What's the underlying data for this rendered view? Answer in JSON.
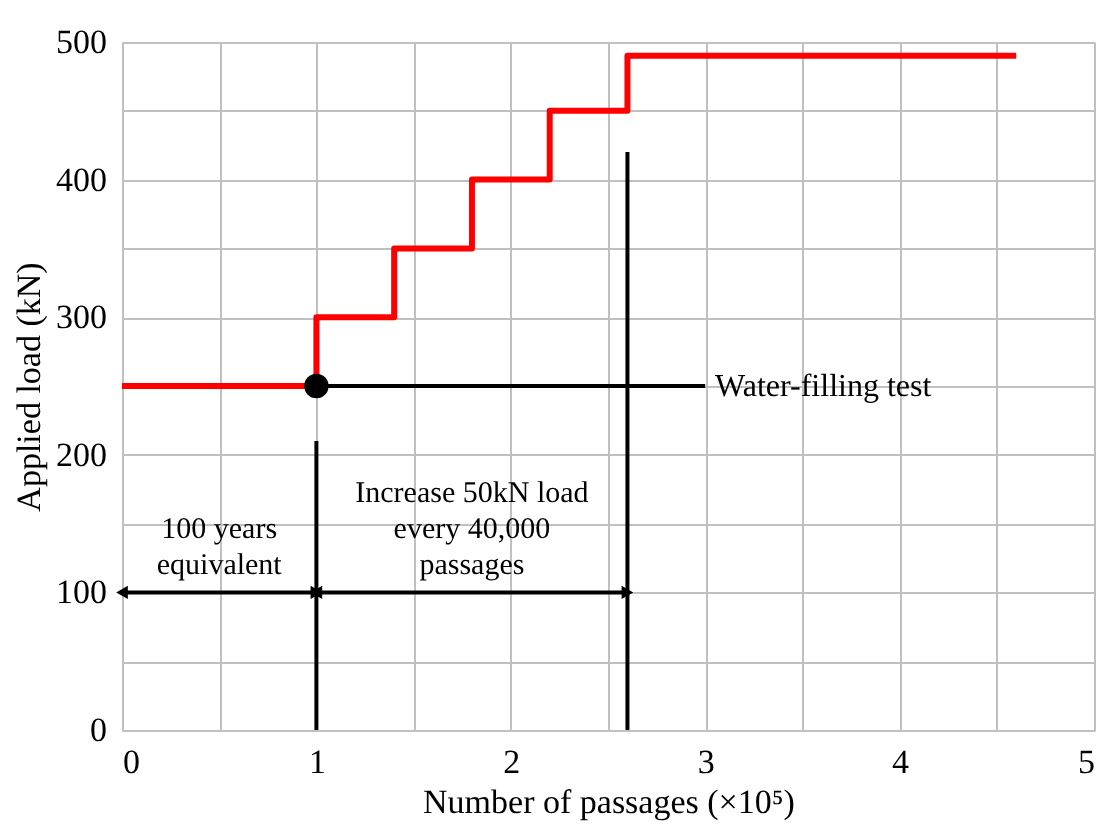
{
  "chart_data": {
    "type": "step",
    "xlabel": "Number of passages (×10⁵)",
    "ylabel": "Applied load (kN)",
    "xlim": [
      0,
      5
    ],
    "ylim": [
      0,
      500
    ],
    "xticks": [
      0,
      {
        "value": 0.5,
        "label": null
      },
      1,
      {
        "value": 1.5,
        "label": null
      },
      2,
      {
        "value": 2.5,
        "label": null
      },
      3,
      {
        "value": 3.5,
        "label": null
      },
      4,
      {
        "value": 4.5,
        "label": null
      },
      5
    ],
    "yticks": [
      0,
      {
        "value": 50,
        "label": null
      },
      100,
      {
        "value": 150,
        "label": null
      },
      200,
      {
        "value": 250,
        "label": null
      },
      300,
      {
        "value": 350,
        "label": null
      },
      400,
      {
        "value": 450,
        "label": null
      },
      500
    ],
    "grid": true,
    "line_style": "solid",
    "series": [
      {
        "color": "#ff0000",
        "x": [
          0,
          1,
          1.4,
          1.8,
          2.2,
          2.6,
          4.6
        ],
        "values": [
          250,
          300,
          350,
          400,
          450,
          490,
          490
        ]
      },
      {
        "type": "line",
        "color": "#000000",
        "x": [
          1,
          3
        ],
        "values": [
          250,
          250
        ]
      },
      {
        "type": "line",
        "color": "#000000",
        "x": [
          1,
          1
        ],
        "values": [
          0,
          210
        ]
      },
      {
        "type": "line",
        "color": "#000000",
        "x": [
          2.6,
          2.6
        ],
        "values": [
          0,
          420
        ]
      },
      {
        "type": "line",
        "color": "#000000",
        "marker": "triangle",
        "x": [
          0,
          1
        ],
        "values": [
          100,
          100
        ]
      },
      {
        "type": "line",
        "color": "#000000",
        "marker": "triangle",
        "x": [
          1,
          2.6
        ],
        "values": [
          100,
          100
        ]
      },
      {
        "type": "scatter",
        "color": "#000000",
        "marker": "circle",
        "x": [
          1
        ],
        "values": [
          250
        ]
      }
    ],
    "annotations": [
      {
        "text": "Water-filling test",
        "x": 3.02,
        "y": 250
      },
      "100 years\nequivalent",
      "Increase 50kN load\nevery 40,000\npassages"
    ]
  }
}
